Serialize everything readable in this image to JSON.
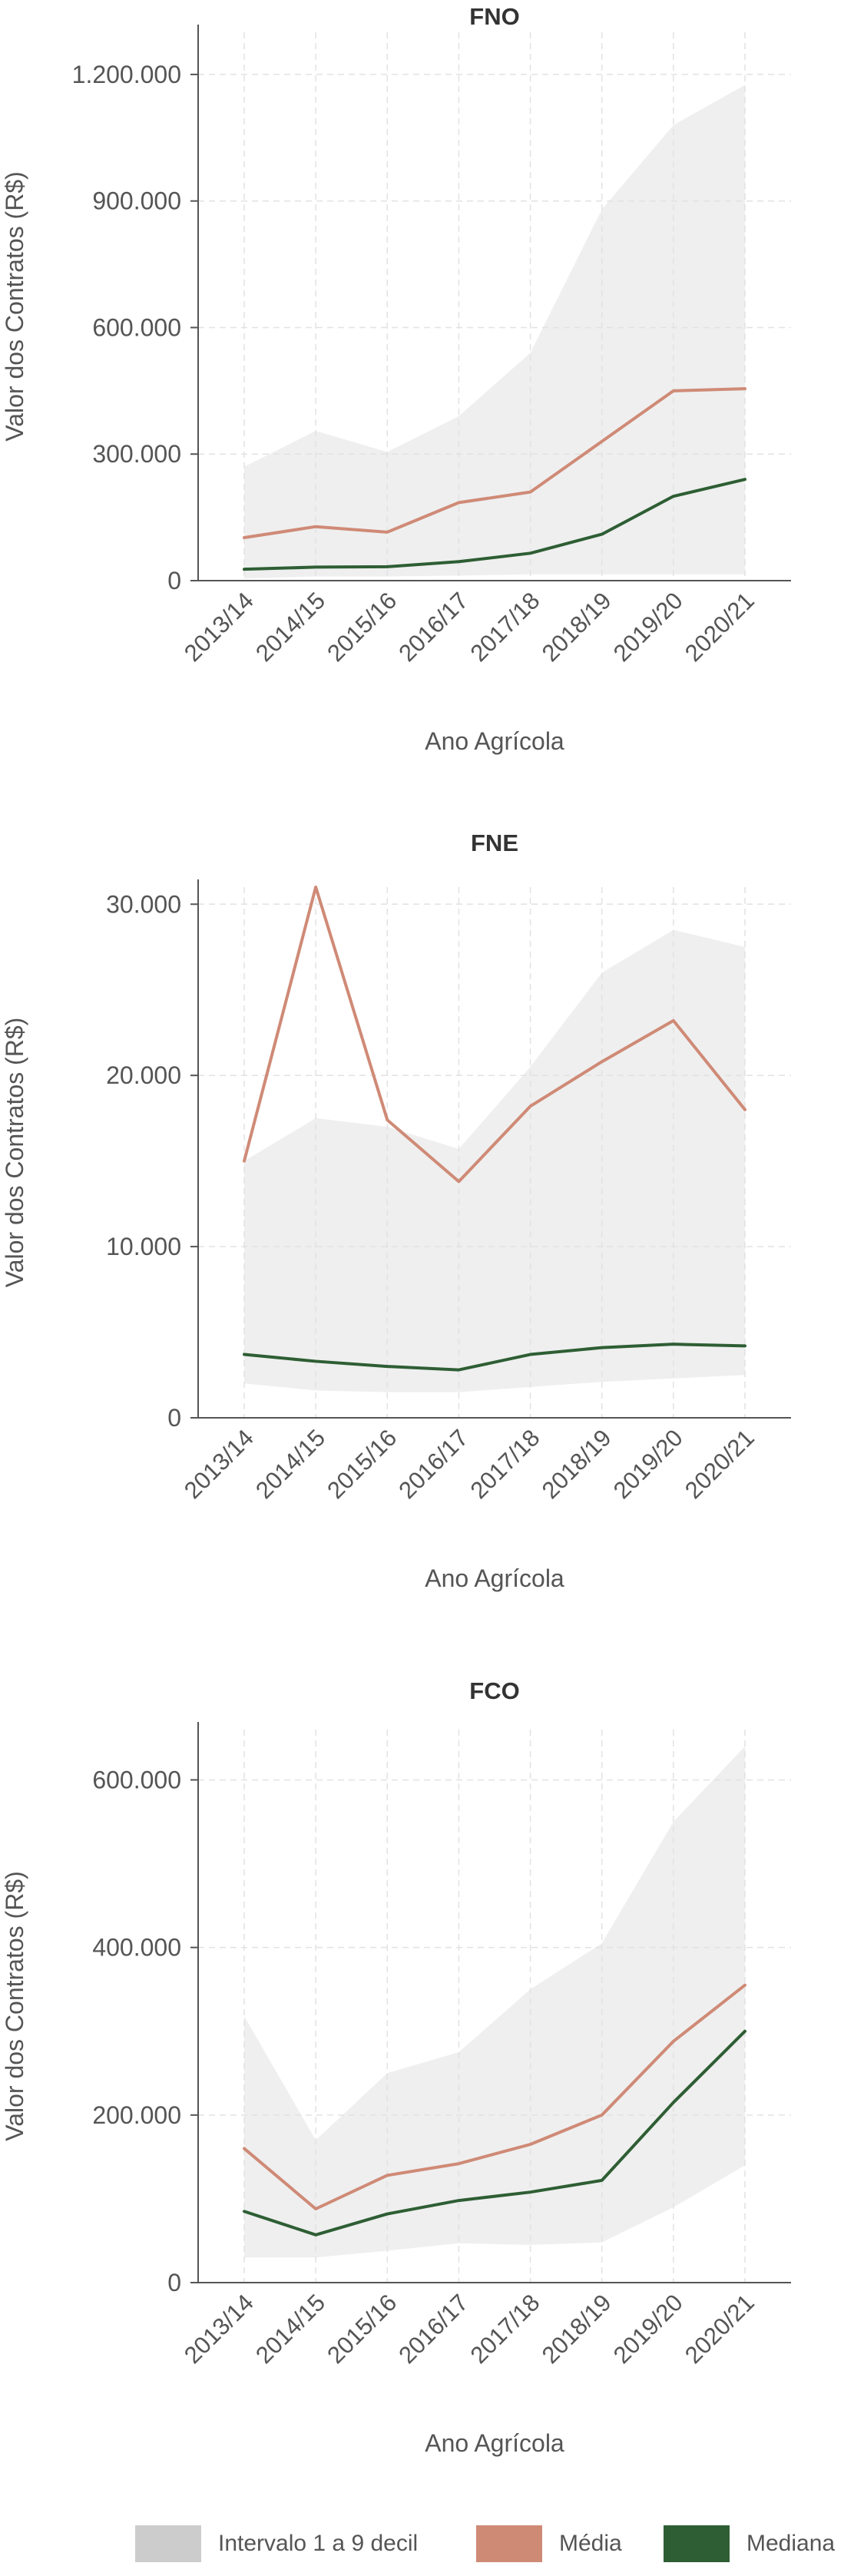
{
  "colors": {
    "band": "#efefef",
    "band_legend": "#cccccc",
    "mean": "#cf8a76",
    "median": "#2e5e34",
    "grid": "#e2e2e2",
    "axis": "#555555",
    "text": "#555555",
    "title": "#333333"
  },
  "legend": {
    "band_label": "Intervalo 1 a 9 decil",
    "mean_label": "Média",
    "median_label": "Mediana"
  },
  "chart_data": [
    {
      "type": "line",
      "title": "FNO",
      "xlabel": "Ano Agrícola",
      "ylabel": "Valor dos Contratos (R$)",
      "categories": [
        "2013/14",
        "2014/15",
        "2015/16",
        "2016/17",
        "2017/18",
        "2018/19",
        "2019/20",
        "2020/21"
      ],
      "ylim": [
        0,
        1300000
      ],
      "yticks": [
        0,
        300000,
        600000,
        900000,
        1200000
      ],
      "ytick_labels": [
        "0",
        "300.000",
        "600.000",
        "900.000",
        "1.200.000"
      ],
      "grid": true,
      "band": {
        "name": "Intervalo 1 a 9 decil",
        "low": [
          5000,
          10000,
          10000,
          12000,
          15000,
          15000,
          15000,
          15000
        ],
        "high": [
          270000,
          355000,
          305000,
          390000,
          540000,
          880000,
          1080000,
          1175000
        ]
      },
      "series": [
        {
          "name": "Média",
          "values": [
            102000,
            128000,
            115000,
            185000,
            210000,
            330000,
            450000,
            455000
          ]
        },
        {
          "name": "Mediana",
          "values": [
            27000,
            32000,
            33000,
            45000,
            65000,
            110000,
            200000,
            240000
          ]
        }
      ]
    },
    {
      "type": "line",
      "title": "FNE",
      "xlabel": "Ano Agrícola",
      "ylabel": "Valor dos Contratos (R$)",
      "categories": [
        "2013/14",
        "2014/15",
        "2015/16",
        "2016/17",
        "2017/18",
        "2018/19",
        "2019/20",
        "2020/21"
      ],
      "ylim": [
        0,
        31000
      ],
      "yticks": [
        0,
        10000,
        20000,
        30000
      ],
      "ytick_labels": [
        "0",
        "10.000",
        "20.000",
        "30.000"
      ],
      "grid": true,
      "band": {
        "name": "Intervalo 1 a 9 decil",
        "low": [
          2000,
          1600,
          1500,
          1500,
          1800,
          2100,
          2300,
          2500
        ],
        "high": [
          15000,
          17500,
          17000,
          15700,
          20500,
          26000,
          28500,
          27500
        ]
      },
      "series": [
        {
          "name": "Média",
          "values": [
            15000,
            31000,
            17400,
            13800,
            18200,
            20800,
            23200,
            18000
          ]
        },
        {
          "name": "Mediana",
          "values": [
            3700,
            3300,
            3000,
            2800,
            3700,
            4100,
            4300,
            4200
          ]
        }
      ]
    },
    {
      "type": "line",
      "title": "FCO",
      "xlabel": "Ano Agrícola",
      "ylabel": "Valor dos Contratos (R$)",
      "categories": [
        "2013/14",
        "2014/15",
        "2015/16",
        "2016/17",
        "2017/18",
        "2018/19",
        "2019/20",
        "2020/21"
      ],
      "ylim": [
        0,
        660000
      ],
      "yticks": [
        0,
        200000,
        400000,
        600000
      ],
      "ytick_labels": [
        "0",
        "200.000",
        "400.000",
        "600.000"
      ],
      "grid": true,
      "band": {
        "name": "Intervalo 1 a 9 decil",
        "low": [
          30000,
          30000,
          38000,
          47000,
          45000,
          48000,
          90000,
          140000
        ],
        "high": [
          318000,
          170000,
          250000,
          275000,
          350000,
          405000,
          550000,
          640000
        ]
      },
      "series": [
        {
          "name": "Média",
          "values": [
            160000,
            88000,
            128000,
            142000,
            165000,
            200000,
            288000,
            355000
          ]
        },
        {
          "name": "Mediana",
          "values": [
            85000,
            57000,
            82000,
            98000,
            108000,
            122000,
            215000,
            300000
          ]
        }
      ]
    }
  ]
}
